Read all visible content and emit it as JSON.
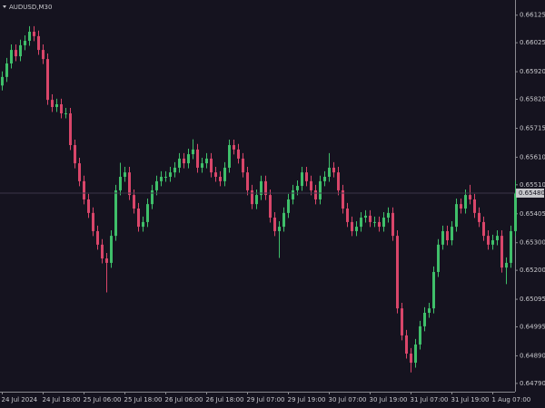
{
  "chart_data": {
    "type": "candlestick",
    "title": "AUDUSD,M30",
    "categories": [
      "24 Jul 2024",
      null,
      null,
      null,
      null,
      null,
      null,
      null,
      null,
      "24 Jul 18:00",
      null,
      null,
      null,
      null,
      null,
      null,
      null,
      null,
      "25 Jul 06:00",
      null,
      null,
      null,
      null,
      null,
      null,
      null,
      null,
      "25 Jul 18:00",
      null,
      null,
      null,
      null,
      null,
      null,
      null,
      null,
      "26 Jul 06:00",
      null,
      null,
      null,
      null,
      null,
      null,
      null,
      null,
      "26 Jul 18:00",
      null,
      null,
      null,
      null,
      null,
      null,
      null,
      null,
      "29 Jul 07:00",
      null,
      null,
      null,
      null,
      null,
      null,
      null,
      null,
      "29 Jul 19:00",
      null,
      null,
      null,
      null,
      null,
      null,
      null,
      null,
      "30 Jul 07:00",
      null,
      null,
      null,
      null,
      null,
      null,
      null,
      null,
      "30 Jul 19:00",
      null,
      null,
      null,
      null,
      null,
      null,
      null,
      null,
      "31 Jul 07:00",
      null,
      null,
      null,
      null,
      null,
      null,
      null,
      null,
      "31 Jul 19:00",
      null,
      null,
      null,
      null,
      null,
      null,
      null,
      null,
      "1 Aug 07:00",
      null,
      null,
      null,
      null,
      null
    ],
    "open": [
      0.6587,
      0.65901,
      0.6595,
      0.65999,
      0.65976,
      0.66016,
      0.66032,
      0.66065,
      0.66049,
      0.65999,
      0.65966,
      0.65818,
      0.65792,
      0.65802,
      0.65769,
      0.65769,
      0.65654,
      0.65588,
      0.65523,
      0.65457,
      0.65408,
      0.65342,
      0.65293,
      0.65243,
      0.65227,
      0.65325,
      0.6549,
      0.65539,
      0.65555,
      0.65473,
      0.65424,
      0.65358,
      0.65375,
      0.6544,
      0.6549,
      0.65523,
      0.65539,
      0.65539,
      0.65555,
      0.65572,
      0.65605,
      0.65588,
      0.65621,
      0.65638,
      0.65572,
      0.65588,
      0.65605,
      0.65555,
      0.65539,
      0.65523,
      0.65572,
      0.65654,
      0.65638,
      0.65605,
      0.65555,
      0.6549,
      0.6544,
      0.65473,
      0.65523,
      0.65473,
      0.65391,
      0.65342,
      0.65358,
      0.65408,
      0.65457,
      0.6549,
      0.65506,
      0.65555,
      0.65523,
      0.6549,
      0.65457,
      0.65523,
      0.65539,
      0.65572,
      0.65555,
      0.6549,
      0.65424,
      0.65375,
      0.65342,
      0.65358,
      0.65391,
      0.65398,
      0.65375,
      0.65375,
      0.65358,
      0.65391,
      0.65408,
      0.65325,
      0.65062,
      0.64964,
      0.64898,
      0.64865,
      0.64931,
      0.64997,
      0.65046,
      0.65062,
      0.65194,
      0.65293,
      0.65342,
      0.65309,
      0.65358,
      0.6544,
      0.65424,
      0.65473,
      0.65457,
      0.65408,
      0.65375,
      0.65325,
      0.65293,
      0.65309,
      0.65325,
      0.6521,
      0.65227,
      0.65342
    ],
    "high": [
      0.65921,
      0.6597,
      0.66019,
      0.66019,
      0.66036,
      0.66052,
      0.66085,
      0.66085,
      0.66069,
      0.66019,
      0.65986,
      0.65838,
      0.65822,
      0.65822,
      0.65789,
      0.65789,
      0.65674,
      0.65608,
      0.65543,
      0.65477,
      0.65428,
      0.65362,
      0.65313,
      0.65263,
      0.65345,
      0.6551,
      0.6559,
      0.65575,
      0.65575,
      0.65493,
      0.65444,
      0.65395,
      0.6546,
      0.6551,
      0.65543,
      0.65559,
      0.65559,
      0.65575,
      0.65592,
      0.65625,
      0.65625,
      0.65641,
      0.65675,
      0.65658,
      0.65608,
      0.65625,
      0.65625,
      0.65575,
      0.65559,
      0.65592,
      0.65674,
      0.65674,
      0.65658,
      0.65625,
      0.65575,
      0.6551,
      0.65493,
      0.65543,
      0.65543,
      0.65493,
      0.65411,
      0.65378,
      0.65428,
      0.65477,
      0.6551,
      0.65526,
      0.65575,
      0.65575,
      0.65543,
      0.6551,
      0.65543,
      0.65559,
      0.65625,
      0.65592,
      0.65575,
      0.6551,
      0.65444,
      0.65395,
      0.65378,
      0.65411,
      0.65418,
      0.65418,
      0.65395,
      0.65395,
      0.65411,
      0.65428,
      0.65428,
      0.65345,
      0.65082,
      0.64984,
      0.64918,
      0.64951,
      0.65017,
      0.65066,
      0.65082,
      0.65214,
      0.65313,
      0.65362,
      0.65362,
      0.65378,
      0.6546,
      0.6546,
      0.65493,
      0.6551,
      0.65477,
      0.65428,
      0.65395,
      0.65345,
      0.65329,
      0.65345,
      0.65345,
      0.65247,
      0.65362,
      0.65525
    ],
    "low": [
      0.65852,
      0.65883,
      0.65932,
      0.65958,
      0.65958,
      0.65998,
      0.66014,
      0.66031,
      0.65981,
      0.65948,
      0.658,
      0.65774,
      0.65774,
      0.65751,
      0.65751,
      0.65636,
      0.6557,
      0.65505,
      0.65439,
      0.6539,
      0.65324,
      0.65275,
      0.65225,
      0.6512,
      0.65209,
      0.65307,
      0.65472,
      0.65521,
      0.65455,
      0.65406,
      0.6534,
      0.6534,
      0.65357,
      0.65422,
      0.65472,
      0.65505,
      0.65521,
      0.65521,
      0.65537,
      0.65554,
      0.6557,
      0.6557,
      0.65603,
      0.65554,
      0.65554,
      0.6557,
      0.65537,
      0.65521,
      0.65505,
      0.65505,
      0.65554,
      0.6562,
      0.65587,
      0.65537,
      0.65472,
      0.65422,
      0.65422,
      0.65455,
      0.65455,
      0.65373,
      0.65324,
      0.65245,
      0.6534,
      0.6539,
      0.65439,
      0.65472,
      0.65488,
      0.65505,
      0.65472,
      0.65439,
      0.65439,
      0.65505,
      0.65521,
      0.65537,
      0.65472,
      0.65406,
      0.65357,
      0.65324,
      0.65324,
      0.6534,
      0.65373,
      0.65357,
      0.65357,
      0.6534,
      0.6534,
      0.65373,
      0.65307,
      0.65044,
      0.64946,
      0.6488,
      0.6483,
      0.64847,
      0.64913,
      0.64979,
      0.65028,
      0.65044,
      0.65176,
      0.65275,
      0.65291,
      0.65291,
      0.6534,
      0.65406,
      0.65406,
      0.65439,
      0.6539,
      0.65357,
      0.65307,
      0.65275,
      0.65275,
      0.65291,
      0.65192,
      0.6515,
      0.65209,
      0.65324
    ],
    "close": [
      0.65901,
      0.6595,
      0.65999,
      0.65976,
      0.66016,
      0.66032,
      0.66065,
      0.66049,
      0.65999,
      0.65966,
      0.65818,
      0.65792,
      0.65802,
      0.65769,
      0.65769,
      0.65654,
      0.65588,
      0.65523,
      0.65457,
      0.65408,
      0.65342,
      0.65293,
      0.65243,
      0.65227,
      0.65325,
      0.6549,
      0.65539,
      0.65555,
      0.65473,
      0.65424,
      0.65358,
      0.65375,
      0.6544,
      0.6549,
      0.65523,
      0.65539,
      0.65539,
      0.65555,
      0.65572,
      0.65605,
      0.65588,
      0.65621,
      0.65638,
      0.65572,
      0.65588,
      0.65605,
      0.65555,
      0.65539,
      0.65523,
      0.65572,
      0.65654,
      0.65638,
      0.65605,
      0.65555,
      0.6549,
      0.6544,
      0.65473,
      0.65523,
      0.65473,
      0.65391,
      0.65342,
      0.65358,
      0.65408,
      0.65457,
      0.6549,
      0.65506,
      0.65555,
      0.65523,
      0.6549,
      0.65457,
      0.65523,
      0.65539,
      0.65572,
      0.65555,
      0.6549,
      0.65424,
      0.65375,
      0.65342,
      0.65358,
      0.65391,
      0.65398,
      0.65375,
      0.65375,
      0.65358,
      0.65391,
      0.65408,
      0.65325,
      0.65062,
      0.64964,
      0.64898,
      0.64865,
      0.64931,
      0.64997,
      0.65046,
      0.65062,
      0.65194,
      0.65293,
      0.65342,
      0.65309,
      0.65358,
      0.6544,
      0.65424,
      0.65473,
      0.65457,
      0.65408,
      0.65375,
      0.65325,
      0.65293,
      0.65309,
      0.65325,
      0.6521,
      0.65227,
      0.65342,
      0.6548
    ],
    "up_color": "#3fbf6a",
    "down_color": "#d9466a",
    "last_price": {
      "value": 0.6548,
      "label": "0.65480"
    },
    "ylim": [
      0.6476,
      0.6618
    ],
    "yticks": [
      0.66125,
      0.66025,
      {
        "value": 0.6592,
        "label": "0.65920"
      },
      {
        "value": 0.6582,
        "label": "0.65820"
      },
      0.65715,
      {
        "value": 0.6561,
        "label": "0.65610"
      },
      {
        "value": 0.6551,
        "label": "0.65510"
      },
      0.65405,
      {
        "value": 0.653,
        "label": "0.65300"
      },
      {
        "value": 0.652,
        "label": "0.65200"
      },
      0.65095,
      0.64995,
      {
        "value": 0.6489,
        "label": "0.64890"
      },
      {
        "value": 0.6479,
        "label": "0.64790"
      }
    ],
    "grid": false
  }
}
